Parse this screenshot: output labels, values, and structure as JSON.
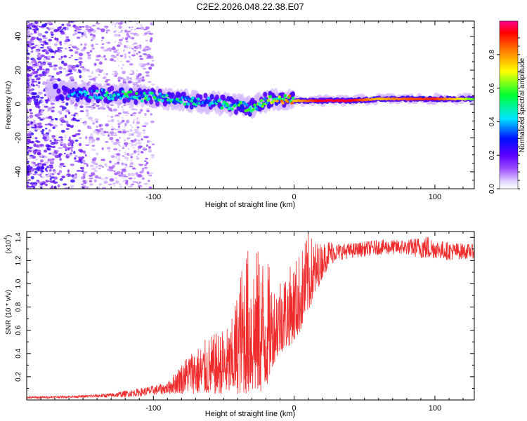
{
  "title": "C2E2.2026.048.22.38.E07",
  "chart_data": [
    {
      "type": "heatmap",
      "xlabel": "Height of straight line (km)",
      "ylabel": "Frequency (Hz)",
      "xlim": [
        -190,
        128
      ],
      "ylim": [
        -50,
        49
      ],
      "xticks": [
        -100,
        0,
        100
      ],
      "yticks": [
        -40,
        -20,
        0,
        20,
        40
      ],
      "xtick_labels": [
        "-100",
        "0",
        "100"
      ],
      "ytick_labels": [
        "-40",
        "-20",
        "0",
        "20",
        "40"
      ],
      "ridge": {
        "x": [
          -190,
          -160,
          -140,
          -120,
          -100,
          -80,
          -60,
          -40,
          -30,
          -20,
          -10,
          0,
          20,
          40,
          60,
          80,
          100,
          128
        ],
        "y": [
          8,
          7,
          6,
          5,
          4,
          2,
          1,
          -1,
          -2,
          2,
          3,
          2,
          2,
          2,
          3,
          3,
          3,
          3
        ],
        "amplitude": [
          0.25,
          0.35,
          0.45,
          0.5,
          0.5,
          0.45,
          0.45,
          0.5,
          0.5,
          0.6,
          0.7,
          0.75,
          0.95,
          0.95,
          0.75,
          0.85,
          0.9,
          0.6
        ]
      },
      "colorbar": {
        "label": "Normalized spectral amplitude",
        "ticks": [
          0.0,
          0.2,
          0.4,
          0.6,
          0.8
        ],
        "tick_labels": [
          "0.0",
          "0.2",
          "0.4",
          "0.6",
          "0.8"
        ],
        "range": [
          0,
          1
        ],
        "colors": [
          "#ffffff",
          "#dcc8ff",
          "#7a00ff",
          "#0000ff",
          "#00e0ff",
          "#00ff40",
          "#ffff00",
          "#ff8000",
          "#ff0000",
          "#ff0080"
        ]
      }
    },
    {
      "type": "line",
      "xlabel": "Height of straight line (km)",
      "ylabel": "SNR (10 * v/v)",
      "scale_label": "(x10",
      "scale_exp": "4",
      "scale_close": ")",
      "xlim": [
        -190,
        128
      ],
      "ylim": [
        0,
        1.45
      ],
      "xticks": [
        -100,
        0,
        100
      ],
      "yticks": [
        0.2,
        0.4,
        0.6,
        0.8,
        1.0,
        1.2,
        1.4
      ],
      "xtick_labels": [
        "-100",
        "0",
        "100"
      ],
      "ytick_labels": [
        "0.2",
        "0.4",
        "0.6",
        "0.8",
        "1.0",
        "1.2",
        "1.4"
      ],
      "line_color": "#ee2a2a",
      "envelope": {
        "x": [
          -190,
          -150,
          -130,
          -110,
          -90,
          -75,
          -60,
          -45,
          -35,
          -25,
          -20,
          -15,
          -10,
          -5,
          0,
          5,
          10,
          15,
          20,
          25,
          30,
          40,
          60,
          80,
          95,
          100,
          110,
          128
        ],
        "low": [
          0.01,
          0.02,
          0.02,
          0.03,
          0.05,
          0.05,
          0.05,
          0.05,
          0.05,
          0.05,
          0.08,
          0.3,
          0.4,
          0.45,
          0.5,
          0.6,
          0.75,
          0.9,
          1.05,
          1.15,
          1.2,
          1.22,
          1.25,
          1.25,
          1.2,
          1.22,
          1.2,
          1.22
        ],
        "high": [
          0.03,
          0.04,
          0.06,
          0.1,
          0.15,
          0.4,
          0.55,
          0.65,
          1.33,
          1.3,
          1.28,
          1.0,
          1.1,
          1.12,
          1.2,
          1.3,
          1.44,
          1.38,
          1.35,
          1.38,
          1.35,
          1.35,
          1.38,
          1.38,
          1.42,
          1.38,
          1.36,
          1.34
        ]
      }
    }
  ]
}
